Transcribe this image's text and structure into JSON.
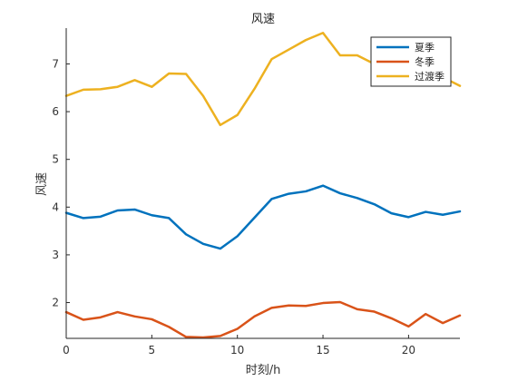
{
  "chart_data": {
    "type": "line",
    "title": "风速",
    "xlabel": "时刻/h",
    "ylabel": "风速",
    "xlim": [
      0,
      23
    ],
    "ylim": [
      1.25,
      7.75
    ],
    "xticks": [
      "0",
      "5",
      "10",
      "15",
      "20"
    ],
    "yticks": [
      "2",
      "3",
      "4",
      "5",
      "6",
      "7"
    ],
    "grid": false,
    "legend_position": "top-right",
    "x": [
      0,
      1,
      2,
      3,
      4,
      5,
      6,
      7,
      8,
      9,
      10,
      11,
      12,
      13,
      14,
      15,
      16,
      17,
      18,
      19,
      20,
      21,
      22,
      23
    ],
    "series": [
      {
        "name": "夏季",
        "color": "#0072BD",
        "values": [
          3.88,
          3.77,
          3.8,
          3.93,
          3.95,
          3.83,
          3.77,
          3.43,
          3.23,
          3.13,
          3.39,
          3.78,
          4.17,
          4.28,
          4.33,
          4.45,
          4.29,
          4.19,
          4.06,
          3.87,
          3.79,
          3.9,
          3.84,
          3.91
        ]
      },
      {
        "name": "冬季",
        "color": "#D95319",
        "values": [
          1.8,
          1.64,
          1.69,
          1.8,
          1.71,
          1.65,
          1.49,
          1.28,
          1.27,
          1.3,
          1.45,
          1.71,
          1.89,
          1.94,
          1.93,
          1.99,
          2.01,
          1.86,
          1.81,
          1.67,
          1.5,
          1.76,
          1.57,
          1.73
        ]
      },
      {
        "name": "过渡季",
        "color": "#EDB120",
        "values": [
          6.33,
          6.46,
          6.47,
          6.52,
          6.66,
          6.52,
          6.8,
          6.79,
          6.33,
          5.72,
          5.93,
          6.48,
          7.1,
          7.3,
          7.5,
          7.65,
          7.18,
          7.18,
          7.0,
          6.9,
          6.9,
          6.75,
          6.72,
          6.54
        ]
      }
    ]
  }
}
